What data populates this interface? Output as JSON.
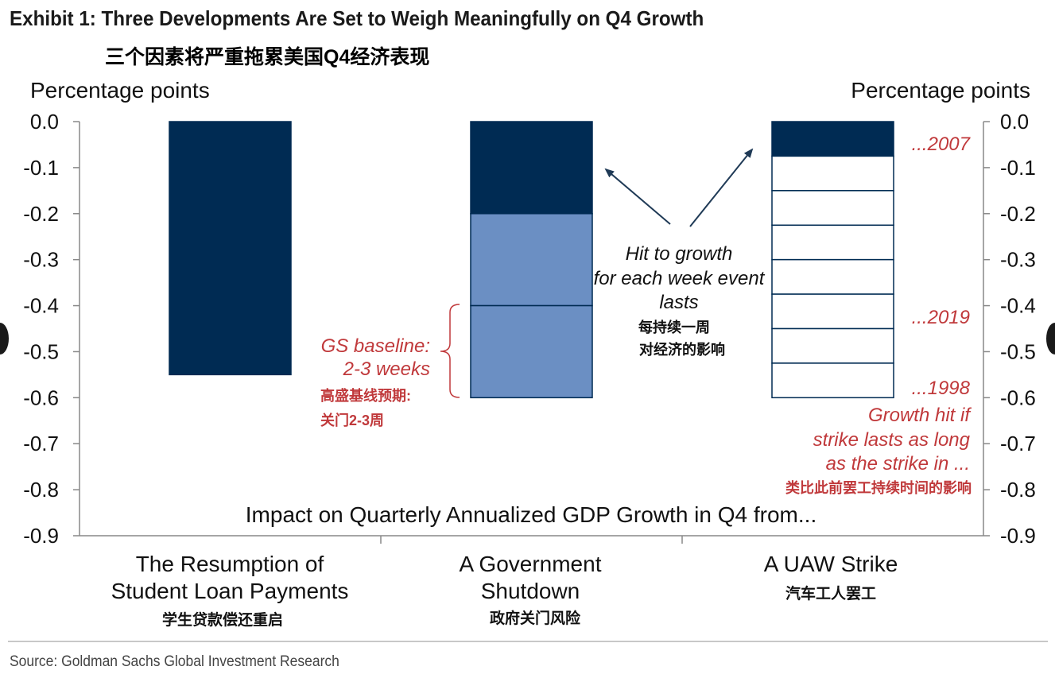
{
  "header": {
    "title": "Exhibit 1: Three Developments Are Set to Weigh Meaningfully on Q4 Growth",
    "subtitle": "三个因素将严重拖累美国Q4经济表现"
  },
  "footer": {
    "source": "Source: Goldman Sachs Global Investment Research"
  },
  "chart_data": {
    "type": "bar",
    "ylabel_left": "Percentage points",
    "ylabel_right": "Percentage points",
    "ylim": [
      -0.9,
      0.0
    ],
    "yticks": [
      "0.0",
      "-0.1",
      "-0.2",
      "-0.3",
      "-0.4",
      "-0.5",
      "-0.6",
      "-0.7",
      "-0.8",
      "-0.9"
    ],
    "xlabel": "Impact on Quarterly Annualized GDP Growth in Q4 from...",
    "grid": false,
    "categories": [
      {
        "label_line1": "The Resumption of",
        "label_line2": "Student Loan Payments",
        "label_cn": "学生贷款偿还重启"
      },
      {
        "label_line1": "A Government",
        "label_line2": "Shutdown",
        "label_cn": "政府关门风险"
      },
      {
        "label_line1": "A UAW Strike",
        "label_line2": "",
        "label_cn": "汽车工人罢工"
      }
    ],
    "bars": [
      {
        "category": 0,
        "total": -0.55,
        "segments": [
          {
            "from": 0.0,
            "to": -0.55,
            "color": "#002b53"
          }
        ]
      },
      {
        "category": 1,
        "total": -0.6,
        "segments": [
          {
            "from": 0.0,
            "to": -0.2,
            "color": "#002b53"
          },
          {
            "from": -0.2,
            "to": -0.4,
            "color": "#6b8fc3"
          },
          {
            "from": -0.4,
            "to": -0.6,
            "color": "#6b8fc3"
          }
        ]
      },
      {
        "category": 2,
        "total": -0.6,
        "segments": [
          {
            "from": 0.0,
            "to": -0.075,
            "color": "#002b53"
          },
          {
            "from": -0.075,
            "to": -0.15,
            "color": "#ffffff"
          },
          {
            "from": -0.15,
            "to": -0.225,
            "color": "#ffffff"
          },
          {
            "from": -0.225,
            "to": -0.3,
            "color": "#ffffff"
          },
          {
            "from": -0.3,
            "to": -0.375,
            "color": "#ffffff"
          },
          {
            "from": -0.375,
            "to": -0.45,
            "color": "#ffffff"
          },
          {
            "from": -0.45,
            "to": -0.525,
            "color": "#ffffff"
          },
          {
            "from": -0.525,
            "to": -0.6,
            "color": "#ffffff"
          }
        ]
      }
    ],
    "annotations": {
      "center_line1": "Hit to growth",
      "center_line2": "for each week event",
      "center_line3": "lasts",
      "center_cn1": "每持续一周",
      "center_cn2": "对经济的影响",
      "baseline_line1": "GS baseline:",
      "baseline_line2": "2-3 weeks",
      "baseline_cn1": "高盛基线预期:",
      "baseline_cn2": "关门2-3周",
      "year_2007": "...2007",
      "year_2019": "...2019",
      "year_1998": "...1998",
      "strike_line1": "Growth hit if",
      "strike_line2": "strike lasts as long",
      "strike_line3": "as the strike in ...",
      "strike_cn": "类比此前罢工持续时间的影响"
    },
    "colors": {
      "dark": "#002b53",
      "light": "#6b8fc3",
      "red": "#c0393b",
      "arrow": "#1f3a56",
      "axis": "#888888"
    }
  }
}
